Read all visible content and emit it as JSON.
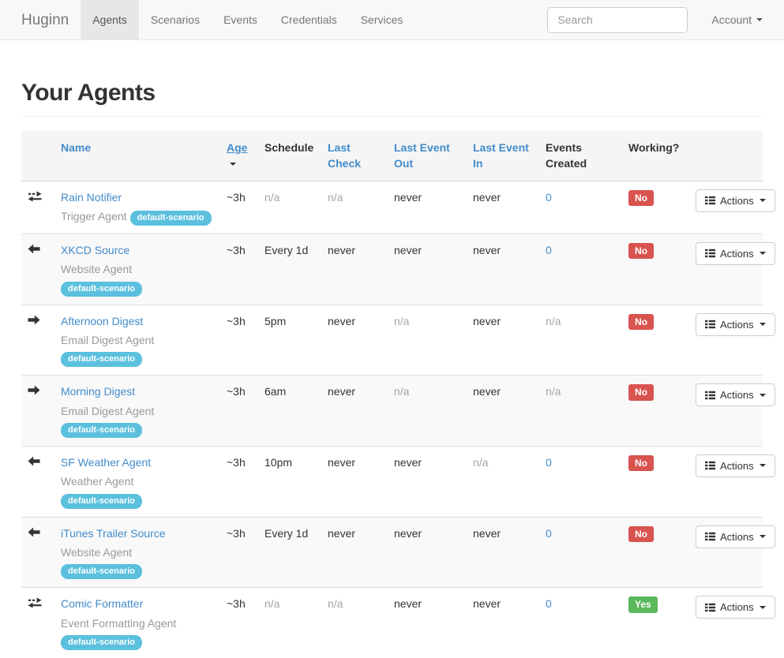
{
  "navbar": {
    "brand": "Huginn",
    "items": [
      {
        "label": "Agents",
        "active": true
      },
      {
        "label": "Scenarios",
        "active": false
      },
      {
        "label": "Events",
        "active": false
      },
      {
        "label": "Credentials",
        "active": false
      },
      {
        "label": "Services",
        "active": false
      }
    ],
    "search_placeholder": "Search",
    "account_label": "Account",
    "account_caret_icon": "caret-down-icon"
  },
  "page": {
    "title": "Your Agents"
  },
  "table": {
    "headers": [
      {
        "label": "Name",
        "style": "link",
        "sorted": false
      },
      {
        "label": "Age",
        "style": "link",
        "sorted": true,
        "sort_icon": "caret-down-icon"
      },
      {
        "label": "Schedule",
        "style": "plain",
        "sorted": false
      },
      {
        "label": "Last Check",
        "style": "link",
        "sorted": false
      },
      {
        "label": "Last Event Out",
        "style": "link",
        "sorted": false
      },
      {
        "label": "Last Event In",
        "style": "link",
        "sorted": false
      },
      {
        "label": "Events Created",
        "style": "plain",
        "sorted": false
      },
      {
        "label": "Working?",
        "style": "plain",
        "sorted": false
      }
    ],
    "actions_button": {
      "label": "Actions",
      "icon": "th-list-icon",
      "caret_icon": "caret-down-icon"
    },
    "rows": [
      {
        "icon": "transfer-arrows-icon",
        "name": "Rain Notifier",
        "agent_type": "Trigger Agent",
        "scenario_badge": "default-scenario",
        "age": {
          "text": "~3h",
          "style": "plain"
        },
        "schedule": {
          "text": "n/a",
          "style": "muted"
        },
        "last_check": {
          "text": "n/a",
          "style": "muted"
        },
        "last_event_out": {
          "text": "never",
          "style": "plain"
        },
        "last_event_in": {
          "text": "never",
          "style": "plain"
        },
        "events_created": {
          "text": "0",
          "style": "link"
        },
        "working": {
          "text": "No",
          "style": "danger"
        }
      },
      {
        "icon": "arrow-left-icon",
        "name": "XKCD Source",
        "agent_type": "Website Agent",
        "scenario_badge": "default-scenario",
        "age": {
          "text": "~3h",
          "style": "plain"
        },
        "schedule": {
          "text": "Every 1d",
          "style": "plain"
        },
        "last_check": {
          "text": "never",
          "style": "plain"
        },
        "last_event_out": {
          "text": "never",
          "style": "plain"
        },
        "last_event_in": {
          "text": "never",
          "style": "plain"
        },
        "events_created": {
          "text": "0",
          "style": "link"
        },
        "working": {
          "text": "No",
          "style": "danger"
        }
      },
      {
        "icon": "arrow-right-icon",
        "name": "Afternoon Digest",
        "agent_type": "Email Digest Agent",
        "scenario_badge": "default-scenario",
        "age": {
          "text": "~3h",
          "style": "plain"
        },
        "schedule": {
          "text": "5pm",
          "style": "plain"
        },
        "last_check": {
          "text": "never",
          "style": "plain"
        },
        "last_event_out": {
          "text": "n/a",
          "style": "muted"
        },
        "last_event_in": {
          "text": "never",
          "style": "plain"
        },
        "events_created": {
          "text": "n/a",
          "style": "muted"
        },
        "working": {
          "text": "No",
          "style": "danger"
        }
      },
      {
        "icon": "arrow-right-icon",
        "name": "Morning Digest",
        "agent_type": "Email Digest Agent",
        "scenario_badge": "default-scenario",
        "age": {
          "text": "~3h",
          "style": "plain"
        },
        "schedule": {
          "text": "6am",
          "style": "plain"
        },
        "last_check": {
          "text": "never",
          "style": "plain"
        },
        "last_event_out": {
          "text": "n/a",
          "style": "muted"
        },
        "last_event_in": {
          "text": "never",
          "style": "plain"
        },
        "events_created": {
          "text": "n/a",
          "style": "muted"
        },
        "working": {
          "text": "No",
          "style": "danger"
        }
      },
      {
        "icon": "arrow-left-icon",
        "name": "SF Weather Agent",
        "agent_type": "Weather Agent",
        "scenario_badge": "default-scenario",
        "age": {
          "text": "~3h",
          "style": "plain"
        },
        "schedule": {
          "text": "10pm",
          "style": "plain"
        },
        "last_check": {
          "text": "never",
          "style": "plain"
        },
        "last_event_out": {
          "text": "never",
          "style": "plain"
        },
        "last_event_in": {
          "text": "n/a",
          "style": "muted"
        },
        "events_created": {
          "text": "0",
          "style": "link"
        },
        "working": {
          "text": "No",
          "style": "danger"
        }
      },
      {
        "icon": "arrow-left-icon",
        "name": "iTunes Trailer Source",
        "agent_type": "Website Agent",
        "scenario_badge": "default-scenario",
        "age": {
          "text": "~3h",
          "style": "plain"
        },
        "schedule": {
          "text": "Every 1d",
          "style": "plain"
        },
        "last_check": {
          "text": "never",
          "style": "plain"
        },
        "last_event_out": {
          "text": "never",
          "style": "plain"
        },
        "last_event_in": {
          "text": "never",
          "style": "plain"
        },
        "events_created": {
          "text": "0",
          "style": "link"
        },
        "working": {
          "text": "No",
          "style": "danger"
        }
      },
      {
        "icon": "transfer-arrows-icon",
        "name": "Comic Formatter",
        "agent_type": "Event Formatting Agent",
        "scenario_badge": "default-scenario",
        "age": {
          "text": "~3h",
          "style": "plain"
        },
        "schedule": {
          "text": "n/a",
          "style": "muted"
        },
        "last_check": {
          "text": "n/a",
          "style": "muted"
        },
        "last_event_out": {
          "text": "never",
          "style": "plain"
        },
        "last_event_in": {
          "text": "never",
          "style": "plain"
        },
        "events_created": {
          "text": "0",
          "style": "link"
        },
        "working": {
          "text": "Yes",
          "style": "success"
        }
      }
    ]
  },
  "colors": {
    "link_blue": "#428bca",
    "badge_info": "#5bc0de",
    "badge_danger": "#d9534f",
    "badge_success": "#5cb85c",
    "muted_text": "#a5a5a5",
    "navbar_bg": "#f8f8f8",
    "navbar_active_bg": "#e7e7e7",
    "stripe_bg": "#f9f9f9",
    "header_bg": "#f5f5f5"
  }
}
